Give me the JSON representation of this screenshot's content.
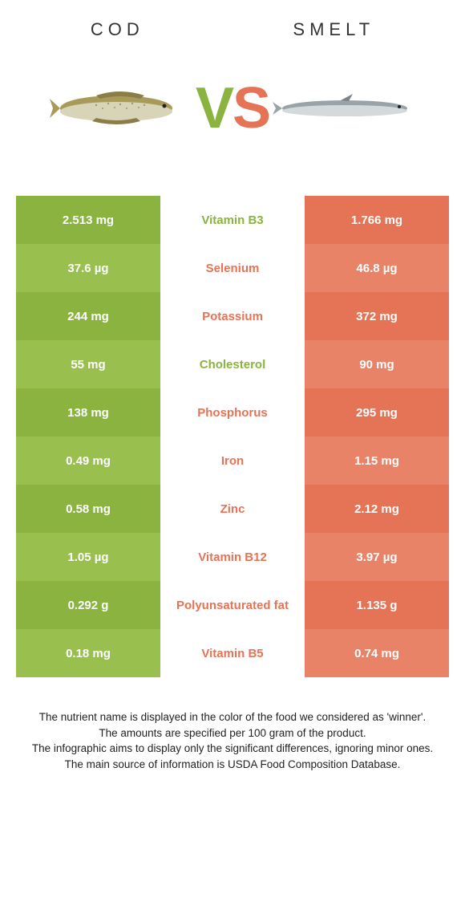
{
  "colors": {
    "left": "#8bb33f",
    "left_alt": "#99bf4f",
    "right": "#e57355",
    "right_alt": "#e88368",
    "text_white": "#ffffff"
  },
  "header": {
    "left_title": "Cod",
    "right_title": "Smelt"
  },
  "vs": {
    "v": "V",
    "s": "S"
  },
  "rows": [
    {
      "left": "2.513 mg",
      "mid": "Vitamin B3",
      "right": "1.766 mg",
      "winner": "left"
    },
    {
      "left": "37.6 µg",
      "mid": "Selenium",
      "right": "46.8 µg",
      "winner": "right"
    },
    {
      "left": "244 mg",
      "mid": "Potassium",
      "right": "372 mg",
      "winner": "right"
    },
    {
      "left": "55 mg",
      "mid": "Cholesterol",
      "right": "90 mg",
      "winner": "left"
    },
    {
      "left": "138 mg",
      "mid": "Phosphorus",
      "right": "295 mg",
      "winner": "right"
    },
    {
      "left": "0.49 mg",
      "mid": "Iron",
      "right": "1.15 mg",
      "winner": "right"
    },
    {
      "left": "0.58 mg",
      "mid": "Zinc",
      "right": "2.12 mg",
      "winner": "right"
    },
    {
      "left": "1.05 µg",
      "mid": "Vitamin B12",
      "right": "3.97 µg",
      "winner": "right"
    },
    {
      "left": "0.292 g",
      "mid": "Polyunsaturated fat",
      "right": "1.135 g",
      "winner": "right"
    },
    {
      "left": "0.18 mg",
      "mid": "Vitamin B5",
      "right": "0.74 mg",
      "winner": "right"
    }
  ],
  "footer": {
    "line1": "The nutrient name is displayed in the color of the food we considered as 'winner'.",
    "line2": "The amounts are specified per 100 gram of the product.",
    "line3": "The infographic aims to display only the significant differences, ignoring minor ones.",
    "line4": "The main source of information is USDA Food Composition Database."
  }
}
